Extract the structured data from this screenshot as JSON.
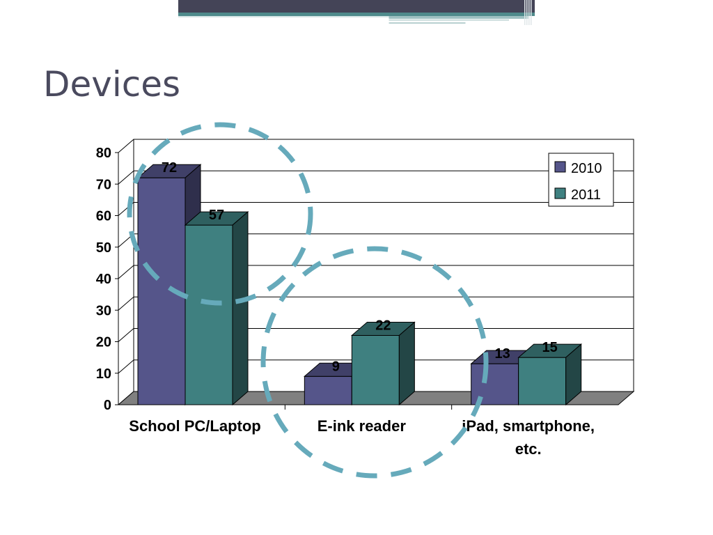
{
  "slide": {
    "title": "Devices",
    "colors": {
      "header_dark": "#444457",
      "header_teal": "#4f8a8b",
      "title": "#4a4a5e",
      "circle": "#66aabb"
    }
  },
  "chart_data": {
    "type": "bar",
    "style": "3d-clustered",
    "categories": [
      "School PC/Laptop",
      "E-ink reader",
      "iPad, smartphone, etc."
    ],
    "series": [
      {
        "name": "2010",
        "values": [
          72,
          9,
          13
        ],
        "color": "#55558a"
      },
      {
        "name": "2011",
        "values": [
          57,
          22,
          15
        ],
        "color": "#3f8080"
      }
    ],
    "ylim": [
      0,
      80
    ],
    "yticks": [
      0,
      10,
      20,
      30,
      40,
      50,
      60,
      70,
      80
    ],
    "grid": true,
    "legend_position": "top-right",
    "data_labels": true,
    "annotations": [
      "dashed circle around School PC/Laptop",
      "dashed circle around E-ink reader"
    ]
  }
}
